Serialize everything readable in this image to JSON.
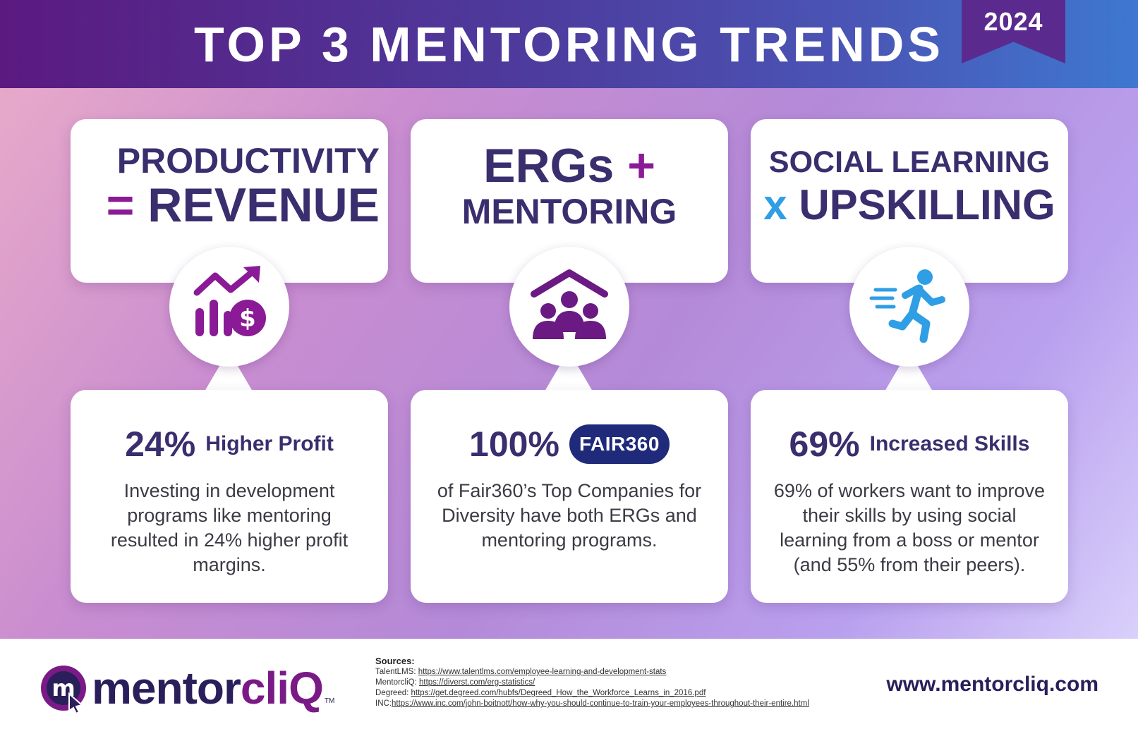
{
  "header": {
    "title": "TOP 3 MENTORING TRENDS",
    "year_badge": "2024"
  },
  "cards": [
    {
      "headline_line1": "PRODUCTIVITY",
      "headline_operator": "=",
      "headline_line2": "REVENUE",
      "icon": "chart-growth-dollar-icon",
      "stat_value": "24%",
      "stat_label": "Higher Profit",
      "description": "Investing in development programs like mentoring resulted in 24% higher profit margins."
    },
    {
      "headline_line1": "ERGs",
      "headline_operator": "+",
      "headline_line2": "MENTORING",
      "icon": "community-group-icon",
      "stat_value": "100%",
      "stat_badge": "FAIR360",
      "description": "of Fair360’s Top Companies for Diversity have both ERGs and mentoring programs."
    },
    {
      "headline_line1": "SOCIAL LEARNING",
      "headline_operator": "x",
      "headline_line2": "UPSKILLING",
      "icon": "running-person-icon",
      "stat_value": "69%",
      "stat_label": "Increased Skills",
      "description": "69% of workers want to improve their skills by using social learning from a boss or mentor (and 55% from their peers)."
    }
  ],
  "footer": {
    "logo_text_main": "mentor",
    "logo_text_accent": "cliQ",
    "logo_tm": "TM",
    "sources_title": "Sources:",
    "sources": [
      {
        "label": "TalentLMS: ",
        "url": "https://www.talentlms.com/employee-learning-and-development-stats"
      },
      {
        "label": "MentorcliQ: ",
        "url": "https://diverst.com/erg-statistics/"
      },
      {
        "label": "Degreed: ",
        "url": "https://get.degreed.com/hubfs/Degreed_How_the_Workforce_Learns_in_2016.pdf"
      },
      {
        "label": "INC:",
        "url": "https://www.inc.com/john-boitnott/how-why-you-should-continue-to-train-your-employees-throughout-their-entire.html"
      }
    ],
    "website": "www.mentorcliq.com"
  },
  "colors": {
    "navy_text": "#3a2e6e",
    "accent_purple": "#8a1a95",
    "accent_blue": "#2f9ee5",
    "fair_badge": "#1f2a7a"
  }
}
